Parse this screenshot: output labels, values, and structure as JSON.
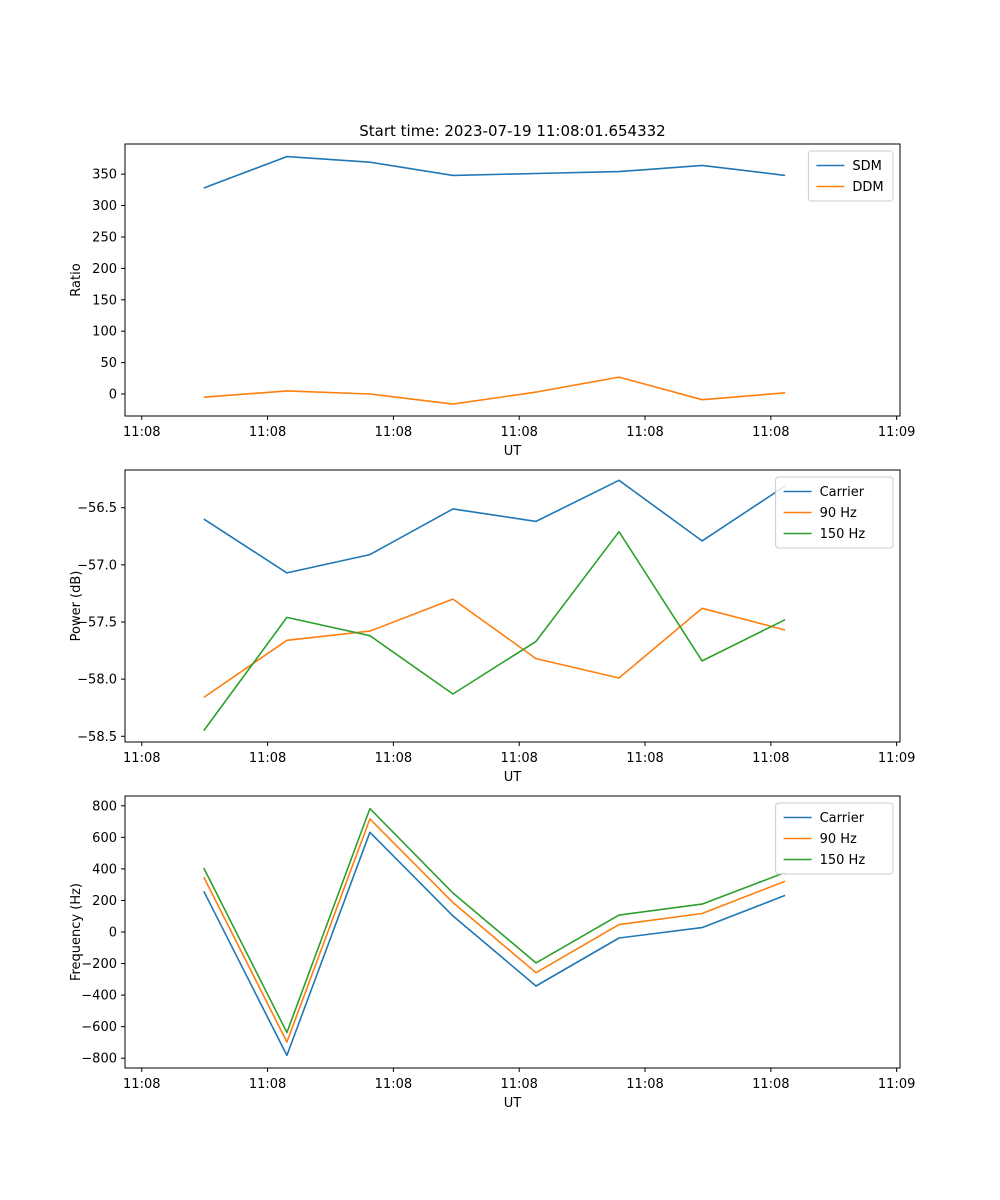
{
  "figure_title": "Start time: 2023-07-19 11:08:01.654332",
  "chart_data": [
    {
      "type": "line",
      "title": "Start time: 2023-07-19 11:08:01.654332",
      "xlabel": "UT",
      "ylabel": "Ratio",
      "xlim": [
        0,
        9.24
      ],
      "ylim": [
        -35,
        398
      ],
      "x_ticks": [
        0.2,
        1.7,
        3.2,
        4.7,
        6.2,
        7.7,
        9.2
      ],
      "x_tick_labels": [
        "11:08",
        "11:08",
        "11:08",
        "11:08",
        "11:08",
        "11:08",
        "11:09"
      ],
      "y_ticks": [
        0,
        50,
        100,
        150,
        200,
        250,
        300,
        350
      ],
      "y_tick_labels": [
        "0",
        "50",
        "100",
        "150",
        "200",
        "250",
        "300",
        "350"
      ],
      "x": [
        0.94,
        1.93,
        2.92,
        3.91,
        4.9,
        5.89,
        6.88,
        7.87
      ],
      "series": [
        {
          "name": "SDM",
          "color": "#1f77b4",
          "values": [
            328,
            378,
            369,
            348,
            351,
            354,
            364,
            348
          ]
        },
        {
          "name": "DDM",
          "color": "#ff7f0e",
          "values": [
            -5,
            5,
            0,
            -16,
            3,
            27,
            -9,
            2
          ]
        }
      ],
      "legend": "top-right"
    },
    {
      "type": "line",
      "xlabel": "UT",
      "ylabel": "Power (dB)",
      "xlim": [
        0,
        9.24
      ],
      "ylim": [
        -58.55,
        -56.17
      ],
      "x_ticks": [
        0.2,
        1.7,
        3.2,
        4.7,
        6.2,
        7.7,
        9.2
      ],
      "x_tick_labels": [
        "11:08",
        "11:08",
        "11:08",
        "11:08",
        "11:08",
        "11:08",
        "11:09"
      ],
      "y_ticks": [
        -58.5,
        -58.0,
        -57.5,
        -57.0,
        -56.5
      ],
      "y_tick_labels": [
        "−58.5",
        "−58.0",
        "−57.5",
        "−57.0",
        "−56.5"
      ],
      "x": [
        0.94,
        1.93,
        2.92,
        3.91,
        4.9,
        5.89,
        6.88,
        7.87
      ],
      "series": [
        {
          "name": "Carrier",
          "color": "#1f77b4",
          "values": [
            -56.6,
            -57.07,
            -56.91,
            -56.51,
            -56.62,
            -56.26,
            -56.79,
            -56.31
          ]
        },
        {
          "name": "90 Hz",
          "color": "#ff7f0e",
          "values": [
            -58.16,
            -57.66,
            -57.58,
            -57.3,
            -57.82,
            -57.99,
            -57.38,
            -57.57
          ]
        },
        {
          "name": "150 Hz",
          "color": "#2ca02c",
          "values": [
            -58.45,
            -57.46,
            -57.62,
            -58.13,
            -57.67,
            -56.71,
            -57.84,
            -57.48
          ]
        }
      ],
      "legend": "top-right"
    },
    {
      "type": "line",
      "xlabel": "UT",
      "ylabel": "Frequency (Hz)",
      "xlim": [
        0,
        9.24
      ],
      "ylim": [
        -862,
        862
      ],
      "x_ticks": [
        0.2,
        1.7,
        3.2,
        4.7,
        6.2,
        7.7,
        9.2
      ],
      "x_tick_labels": [
        "11:08",
        "11:08",
        "11:08",
        "11:08",
        "11:08",
        "11:08",
        "11:09"
      ],
      "y_ticks": [
        -800,
        -600,
        -400,
        -200,
        0,
        200,
        400,
        600,
        800
      ],
      "y_tick_labels": [
        "−800",
        "−600",
        "−400",
        "−200",
        "0",
        "200",
        "400",
        "600",
        "800"
      ],
      "x": [
        0.94,
        1.93,
        2.92,
        3.91,
        4.9,
        5.89,
        6.88,
        7.87
      ],
      "series": [
        {
          "name": "Carrier",
          "color": "#1f77b4",
          "values": [
            258,
            -782,
            632,
            102,
            -342,
            -38,
            28,
            232
          ]
        },
        {
          "name": "90 Hz",
          "color": "#ff7f0e",
          "values": [
            348,
            -697,
            717,
            187,
            -258,
            47,
            117,
            322
          ]
        },
        {
          "name": "150 Hz",
          "color": "#2ca02c",
          "values": [
            405,
            -637,
            782,
            247,
            -196,
            107,
            177,
            377
          ]
        }
      ],
      "legend": "top-right"
    }
  ]
}
